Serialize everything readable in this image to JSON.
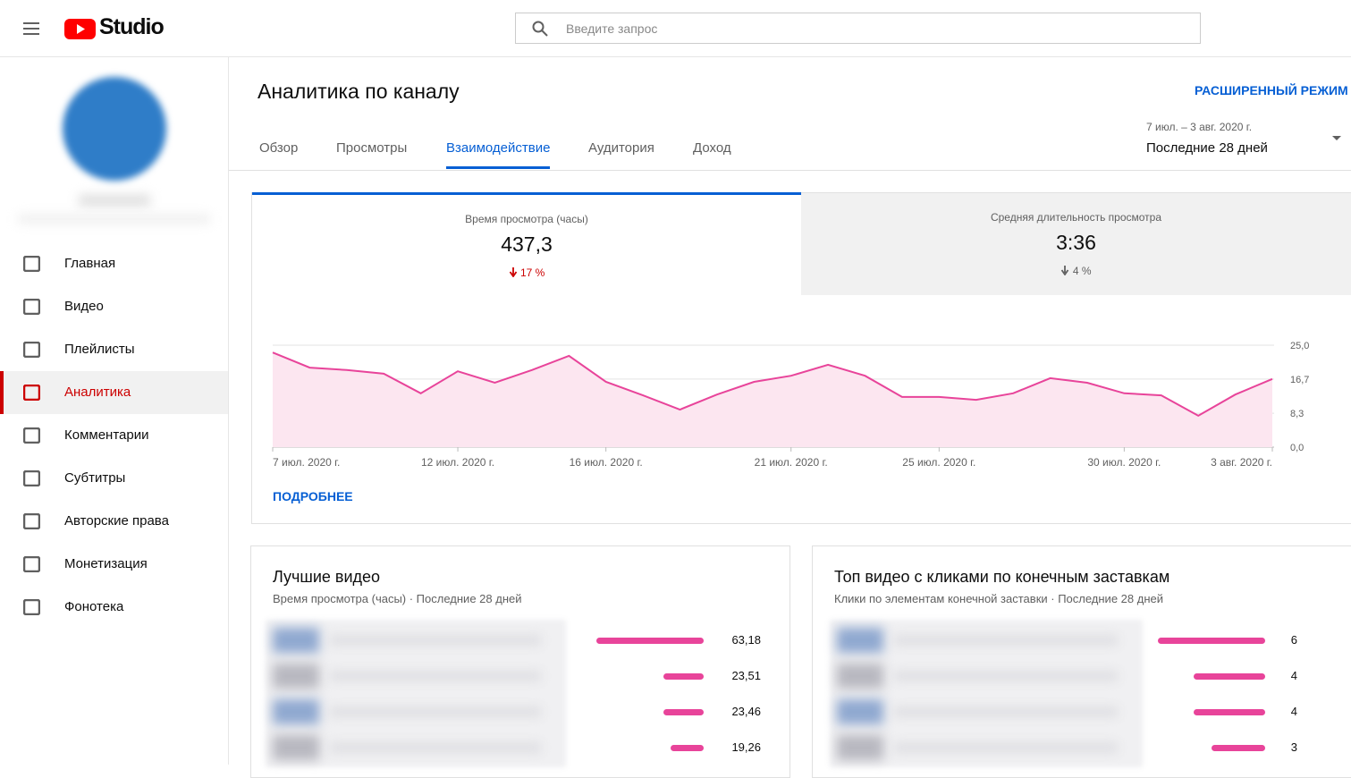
{
  "header": {
    "logo": "Studio",
    "search_placeholder": "Введите запрос"
  },
  "sidebar": {
    "items": [
      "Главная",
      "Видео",
      "Плейлисты",
      "Аналитика",
      "Комментарии",
      "Субтитры",
      "Авторские права",
      "Монетизация",
      "Фонотека"
    ]
  },
  "main": {
    "title": "Аналитика по каналу",
    "advanced_mode": "РАСШИРЕННЫЙ РЕЖИМ",
    "tabs": [
      "Обзор",
      "Просмотры",
      "Взаимодействие",
      "Аудитория",
      "Доход"
    ],
    "date_range": "7 июл. – 3 авг. 2020 г.",
    "period": "Последние 28 дней",
    "metrics": [
      {
        "label": "Время просмотра (часы)",
        "value": "437,3",
        "change": "17 %"
      },
      {
        "label": "Средняя длительность просмотра",
        "value": "3:36",
        "change": "4 %"
      }
    ],
    "more_link": "ПОДРОБНЕЕ"
  },
  "chart_data": [
    {
      "type": "line",
      "categories": [
        "7 июл. 2020 г.",
        null,
        null,
        null,
        null,
        "12 июл. 2020 г.",
        null,
        null,
        null,
        "16 июл. 2020 г.",
        null,
        null,
        null,
        null,
        "21 июл. 2020 г.",
        null,
        null,
        null,
        "25 июл. 2020 г.",
        null,
        null,
        null,
        null,
        "30 июл. 2020 г.",
        null,
        null,
        null,
        "3 авг. 2020 г."
      ],
      "values": [
        23.2,
        19.5,
        18.9,
        18.0,
        13.2,
        18.6,
        15.8,
        18.9,
        22.4,
        16.0,
        12.7,
        9.2,
        12.9,
        16.0,
        17.5,
        20.2,
        17.5,
        12.3,
        12.3,
        11.6,
        13.2,
        16.9,
        15.8,
        13.2,
        12.7,
        7.7,
        12.9,
        16.7
      ],
      "color": "#e8449a",
      "area_color": "#fce6f0",
      "ylim": [
        0,
        25
      ],
      "yticks": [
        {
          "value": 0,
          "label": "0,0"
        },
        {
          "value": 8.3,
          "label": "8,3"
        },
        {
          "value": 16.7,
          "label": "16,7"
        },
        {
          "value": 25,
          "label": "25,0"
        }
      ],
      "grid": true
    },
    {
      "type": "bar",
      "title": "Лучшие видео",
      "subtitle": "Время просмотра (часы) · Последние 28 дней",
      "values": [
        63.18,
        23.51,
        23.46,
        19.26
      ],
      "value_labels": [
        "63,18",
        "23,51",
        "23,46",
        "19,26"
      ],
      "color": "#e8449a"
    },
    {
      "type": "bar",
      "title": "Топ видео с кликами по конечным заставкам",
      "subtitle": "Клики по элементам конечной заставки · Последние 28 дней",
      "values": [
        6,
        4,
        4,
        3
      ],
      "color": "#e8449a"
    }
  ]
}
